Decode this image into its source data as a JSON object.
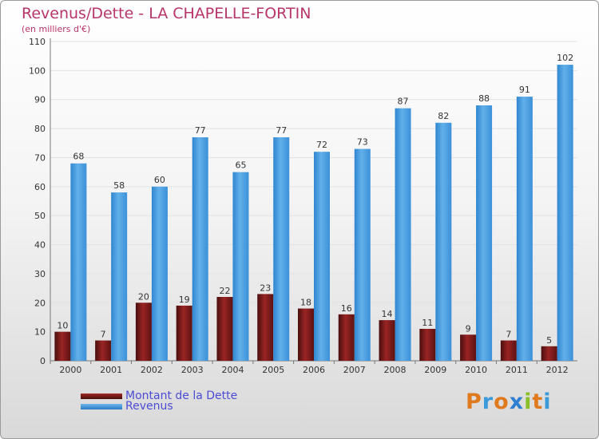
{
  "colors": {
    "title": "#b8356a",
    "dette": "#7a1a1a",
    "revenus": "#4a9de0",
    "legend_text": "#4b4bd6",
    "axis_text": "#333333",
    "grid": "#e2e2e2"
  },
  "logo": {
    "letters": [
      "P",
      "r",
      "o",
      "x",
      "i",
      "t",
      "i"
    ],
    "colors": [
      "#e07a1f",
      "#3b9ad9",
      "#e07a1f",
      "#2e7fd1",
      "#8bbf2a",
      "#e07a1f",
      "#3b9ad9"
    ]
  },
  "chart_data": {
    "type": "bar",
    "title": "Revenus/Dette - LA CHAPELLE-FORTIN",
    "subtitle": "(en milliers d'€)",
    "categories": [
      "2000",
      "2001",
      "2002",
      "2003",
      "2004",
      "2005",
      "2006",
      "2007",
      "2008",
      "2009",
      "2010",
      "2011",
      "2012"
    ],
    "series": [
      {
        "name": "Montant de la Dette",
        "values": [
          10,
          7,
          20,
          19,
          22,
          23,
          18,
          16,
          14,
          11,
          9,
          7,
          5
        ]
      },
      {
        "name": "Revenus",
        "values": [
          68,
          58,
          60,
          77,
          65,
          77,
          72,
          73,
          87,
          82,
          88,
          91,
          102
        ]
      }
    ],
    "ylim": [
      0,
      110
    ],
    "yticks": [
      0,
      10,
      20,
      30,
      40,
      50,
      60,
      70,
      80,
      90,
      100,
      110
    ],
    "grid": true,
    "legend_position": "bottom-left"
  }
}
